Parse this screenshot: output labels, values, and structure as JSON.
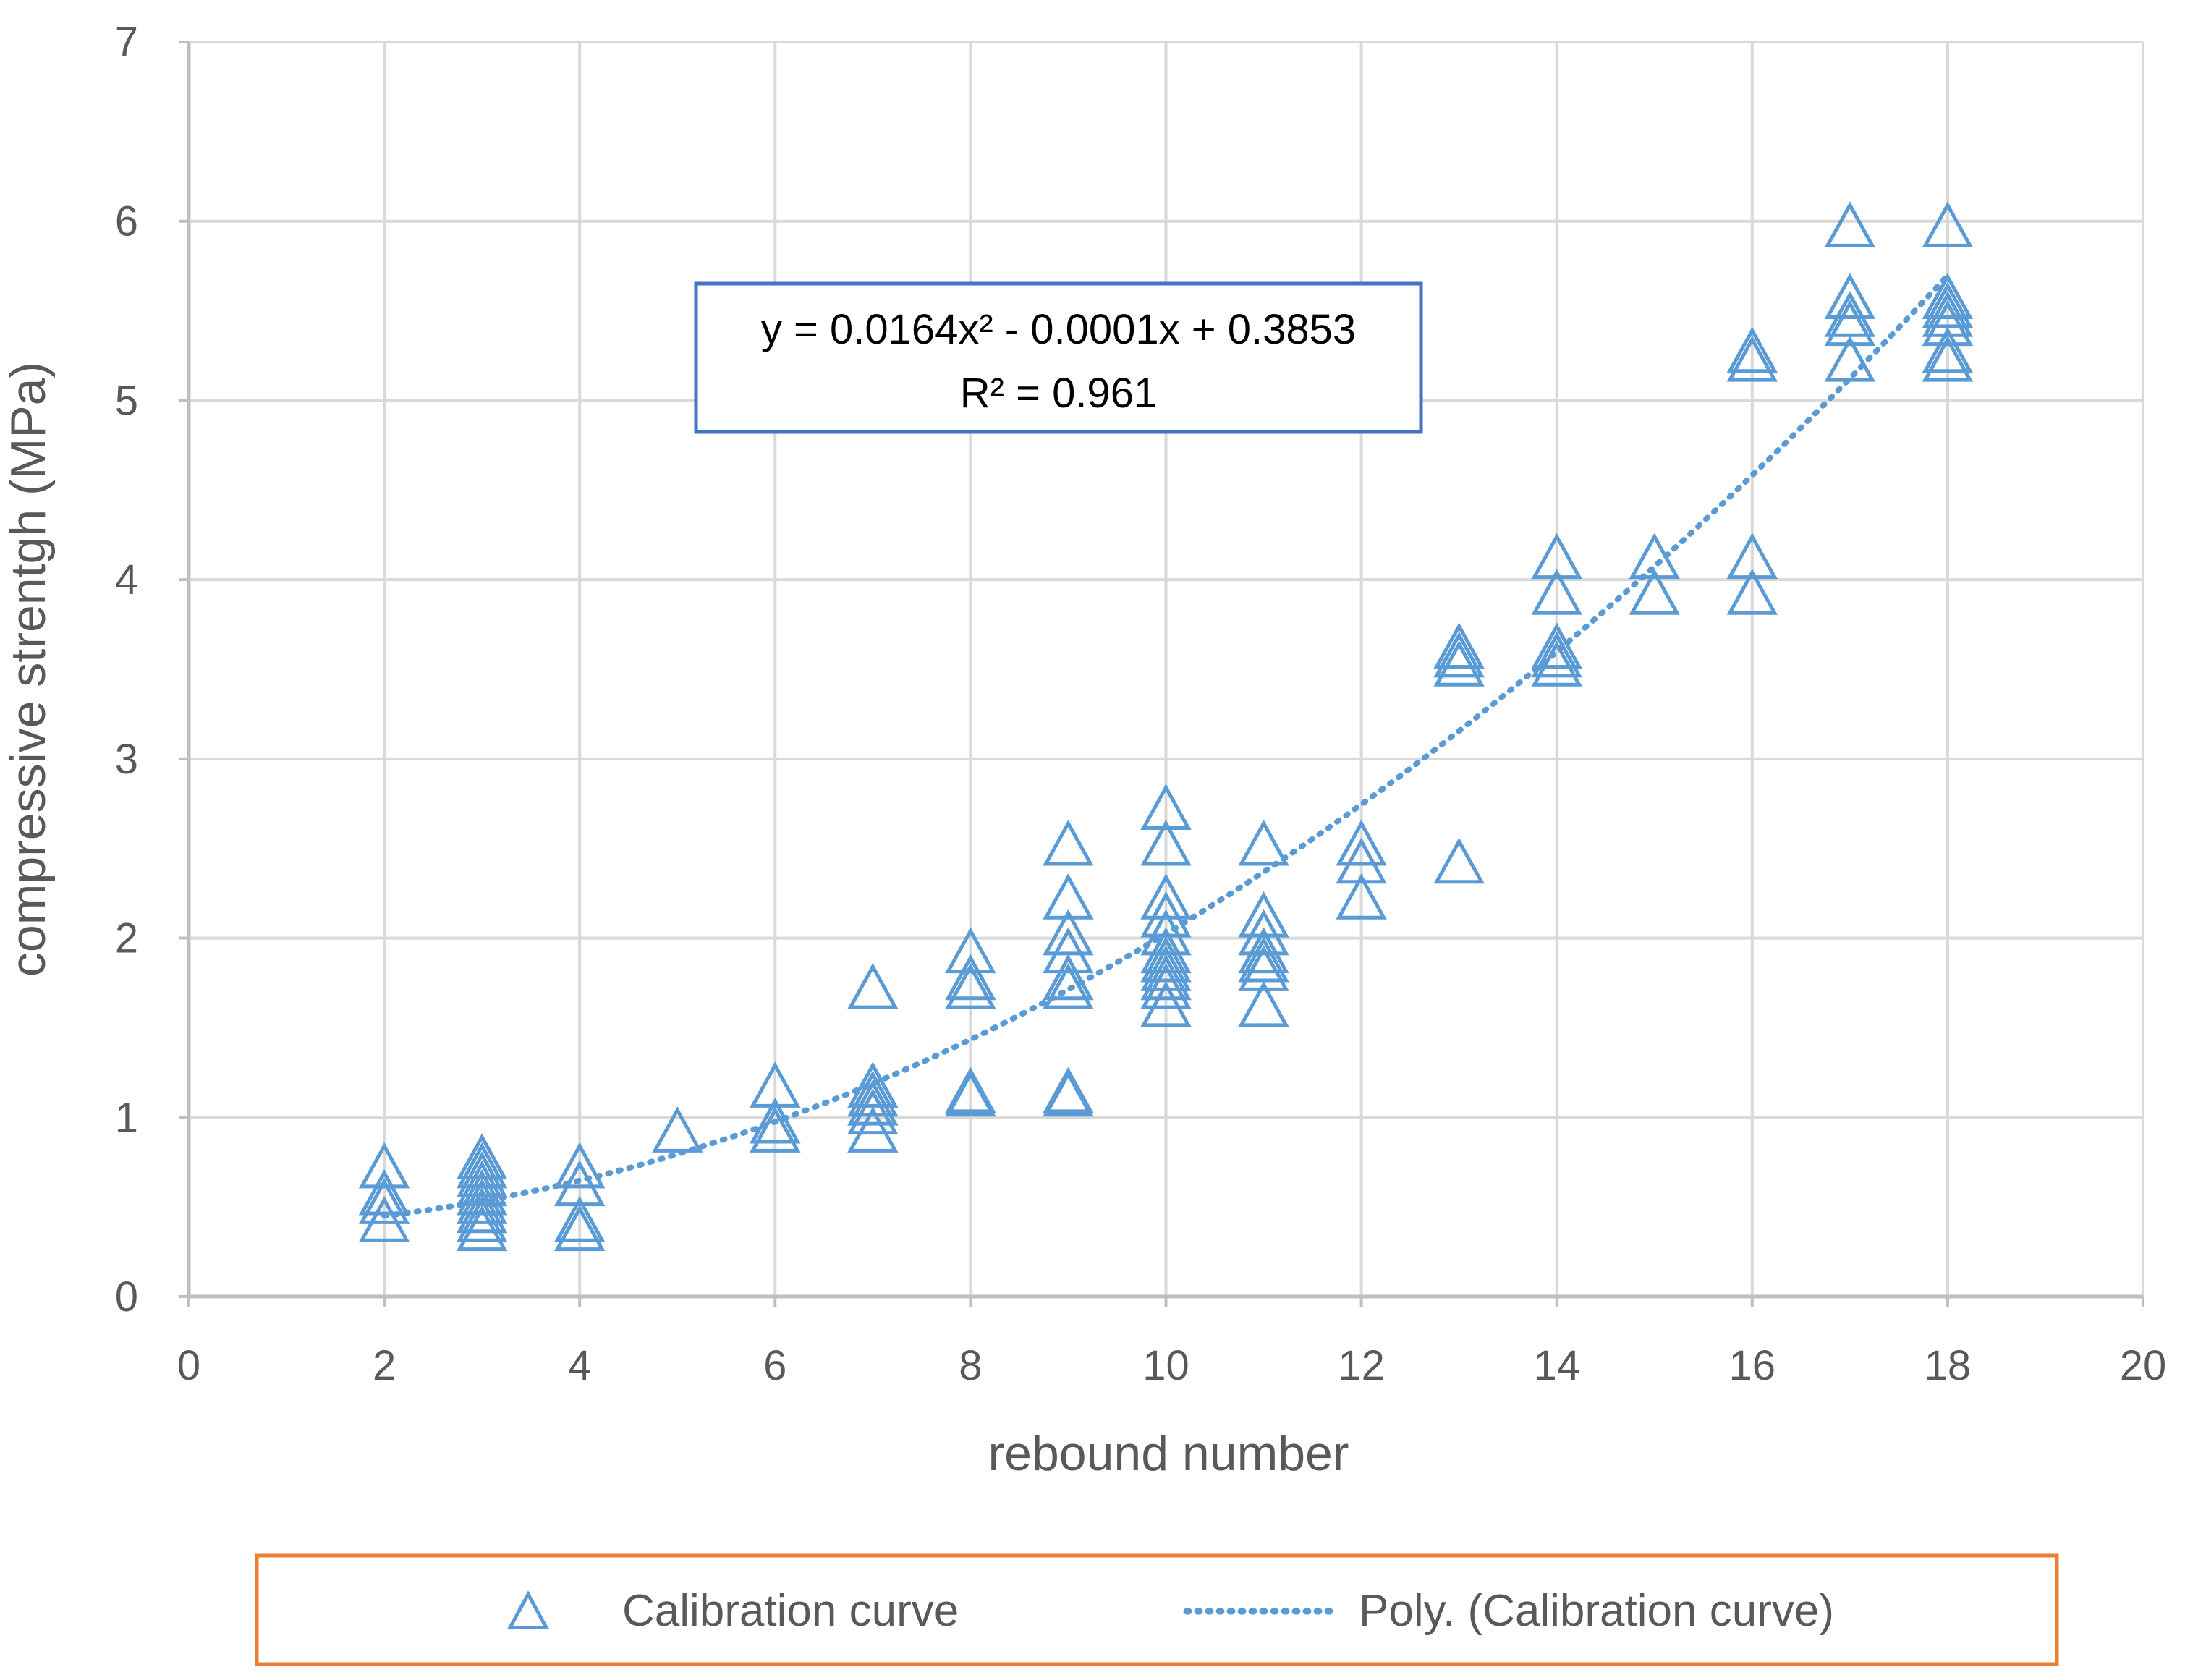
{
  "chart_data": {
    "type": "scatter",
    "xlabel": "rebound number",
    "ylabel": "compressive strentgh (MPa)",
    "xlim": [
      0,
      20
    ],
    "ylim": [
      0,
      7
    ],
    "xticks": [
      0,
      2,
      4,
      6,
      8,
      10,
      12,
      14,
      16,
      18,
      20
    ],
    "yticks": [
      0,
      1,
      2,
      3,
      4,
      5,
      6,
      7
    ],
    "grid": true,
    "colors": {
      "series": "#5B9BD5",
      "grid": "#D9D9D9",
      "axis": "#BFBFBF",
      "text": "#595959",
      "equation_border": "#4472C4",
      "legend_border": "#ED7D31"
    },
    "series": [
      {
        "name": "Calibration curve",
        "marker": "triangle-open",
        "points": [
          [
            2,
            0.4
          ],
          [
            2,
            0.5
          ],
          [
            2,
            0.55
          ],
          [
            2,
            0.7
          ],
          [
            3,
            0.35
          ],
          [
            3,
            0.4
          ],
          [
            3,
            0.45
          ],
          [
            3,
            0.5
          ],
          [
            3,
            0.55
          ],
          [
            3,
            0.6
          ],
          [
            3,
            0.65
          ],
          [
            3,
            0.7
          ],
          [
            3,
            0.75
          ],
          [
            4,
            0.35
          ],
          [
            4,
            0.4
          ],
          [
            4,
            0.6
          ],
          [
            4,
            0.7
          ],
          [
            5,
            0.9
          ],
          [
            6,
            0.9
          ],
          [
            6,
            0.95
          ],
          [
            6,
            1.15
          ],
          [
            7,
            0.9
          ],
          [
            7,
            1.0
          ],
          [
            7,
            1.05
          ],
          [
            7,
            1.1
          ],
          [
            7,
            1.15
          ],
          [
            7,
            1.7
          ],
          [
            8,
            1.1
          ],
          [
            8,
            1.12
          ],
          [
            8,
            1.7
          ],
          [
            8,
            1.75
          ],
          [
            8,
            1.9
          ],
          [
            9,
            1.1
          ],
          [
            9,
            1.12
          ],
          [
            9,
            1.7
          ],
          [
            9,
            1.75
          ],
          [
            9,
            1.9
          ],
          [
            9,
            2.0
          ],
          [
            9,
            2.2
          ],
          [
            9,
            2.5
          ],
          [
            10,
            1.6
          ],
          [
            10,
            1.7
          ],
          [
            10,
            1.75
          ],
          [
            10,
            1.8
          ],
          [
            10,
            1.85
          ],
          [
            10,
            1.9
          ],
          [
            10,
            2.0
          ],
          [
            10,
            2.1
          ],
          [
            10,
            2.2
          ],
          [
            10,
            2.5
          ],
          [
            10,
            2.7
          ],
          [
            11,
            1.6
          ],
          [
            11,
            1.8
          ],
          [
            11,
            1.85
          ],
          [
            11,
            1.9
          ],
          [
            11,
            2.0
          ],
          [
            11,
            2.1
          ],
          [
            11,
            2.5
          ],
          [
            12,
            2.2
          ],
          [
            12,
            2.4
          ],
          [
            12,
            2.5
          ],
          [
            13,
            2.4
          ],
          [
            13,
            3.5
          ],
          [
            13,
            3.55
          ],
          [
            13,
            3.6
          ],
          [
            14,
            3.5
          ],
          [
            14,
            3.55
          ],
          [
            14,
            3.6
          ],
          [
            14,
            3.9
          ],
          [
            14,
            4.1
          ],
          [
            15,
            3.9
          ],
          [
            15,
            4.1
          ],
          [
            16,
            3.9
          ],
          [
            16,
            4.1
          ],
          [
            16,
            5.2
          ],
          [
            16,
            5.25
          ],
          [
            17,
            5.2
          ],
          [
            17,
            5.4
          ],
          [
            17,
            5.45
          ],
          [
            17,
            5.55
          ],
          [
            17,
            5.95
          ],
          [
            18,
            5.2
          ],
          [
            18,
            5.25
          ],
          [
            18,
            5.4
          ],
          [
            18,
            5.45
          ],
          [
            18,
            5.5
          ],
          [
            18,
            5.55
          ],
          [
            18,
            5.95
          ]
        ]
      },
      {
        "name": "Poly. (Calibration curve)",
        "line_style": "dotted",
        "fit": {
          "type": "polynomial",
          "coefficients": [
            0.0164,
            -0.0001,
            0.3853
          ],
          "x_range": [
            2,
            18
          ]
        }
      }
    ],
    "annotation": {
      "lines": [
        "y = 0.0164x² - 0.0001x + 0.3853",
        "R² = 0.961"
      ]
    },
    "legend": {
      "position": "bottom",
      "entries": [
        "Calibration curve",
        "Poly. (Calibration curve)"
      ]
    }
  }
}
